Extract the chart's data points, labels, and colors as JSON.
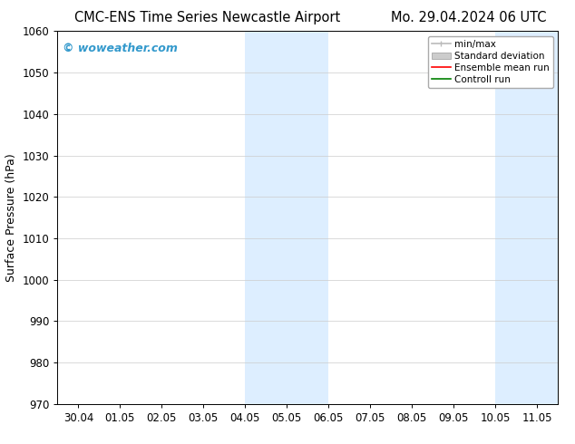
{
  "title_left": "CMC-ENS Time Series Newcastle Airport",
  "title_right": "Mo. 29.04.2024 06 UTC",
  "ylabel": "Surface Pressure (hPa)",
  "ylim": [
    970,
    1060
  ],
  "yticks": [
    970,
    980,
    990,
    1000,
    1010,
    1020,
    1030,
    1040,
    1050,
    1060
  ],
  "xtick_labels": [
    "30.04",
    "01.05",
    "02.05",
    "03.05",
    "04.05",
    "05.05",
    "06.05",
    "07.05",
    "08.05",
    "09.05",
    "10.05",
    "11.05"
  ],
  "shaded_regions": [
    {
      "xstart": 4.0,
      "xend": 6.0
    },
    {
      "xstart": 10.0,
      "xend": 11.5
    }
  ],
  "shaded_color": "#ddeeff",
  "background_color": "#ffffff",
  "watermark": "© woweather.com",
  "watermark_color": "#3399cc",
  "legend_entries": [
    {
      "label": "min/max",
      "color": "#bbbbbb",
      "lw": 1.2
    },
    {
      "label": "Standard deviation",
      "color": "#cccccc",
      "lw": 5
    },
    {
      "label": "Ensemble mean run",
      "color": "#ff0000",
      "lw": 1.2
    },
    {
      "label": "Controll run",
      "color": "#008000",
      "lw": 1.2
    }
  ],
  "grid_color": "#cccccc",
  "title_fontsize": 10.5,
  "axis_fontsize": 9,
  "tick_fontsize": 8.5,
  "watermark_fontsize": 9,
  "legend_fontsize": 7.5,
  "fig_width": 6.34,
  "fig_height": 4.9,
  "dpi": 100,
  "xlim_left": -0.5,
  "xlim_right": 11.5
}
